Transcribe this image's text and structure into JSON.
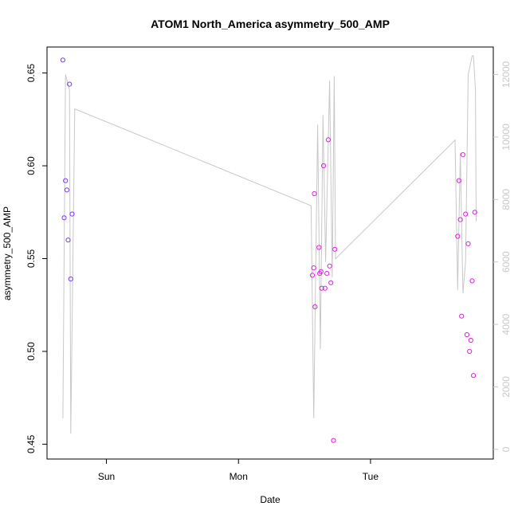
{
  "chart_data": {
    "type": "scatter",
    "title": "ATOM1 North_America asymmetry_500_AMP",
    "xlabel": "Date",
    "ylabel": "asymmetry_500_AMP",
    "x_ticks": [
      "Sun",
      "Mon",
      "Tue"
    ],
    "x_tick_positions": [
      1,
      2,
      3
    ],
    "xlim": [
      0.55,
      3.93
    ],
    "ylim": [
      0.442,
      0.664
    ],
    "y_ticks": [
      0.45,
      0.5,
      0.55,
      0.6,
      0.65
    ],
    "y_tick_labels": [
      "0.45",
      "0.50",
      "0.55",
      "0.60",
      "0.65"
    ],
    "y2lim": [
      -310,
      12880
    ],
    "y2_ticks": [
      0,
      2000,
      4000,
      6000,
      8000,
      10000,
      12000
    ],
    "y2_tick_labels": [
      "0",
      "2000",
      "4000",
      "6000",
      "8000",
      "10000",
      "12000"
    ],
    "grid": false,
    "series": [
      {
        "type": "scatter",
        "color": "#7a3cf0",
        "points": [
          [
            0.67,
            0.657
          ],
          [
            0.68,
            0.572
          ],
          [
            0.69,
            0.592
          ],
          [
            0.7,
            0.587
          ],
          [
            0.71,
            0.56
          ],
          [
            0.72,
            0.644
          ],
          [
            0.73,
            0.539
          ],
          [
            0.74,
            0.574
          ]
        ]
      },
      {
        "type": "scatter",
        "color": "#e020e0",
        "points": [
          [
            2.56,
            0.541
          ],
          [
            2.57,
            0.545
          ],
          [
            2.575,
            0.585
          ],
          [
            2.58,
            0.524
          ],
          [
            2.61,
            0.556
          ],
          [
            2.615,
            0.542
          ],
          [
            2.625,
            0.543
          ],
          [
            2.63,
            0.534
          ],
          [
            2.645,
            0.6
          ],
          [
            2.655,
            0.534
          ],
          [
            2.67,
            0.542
          ],
          [
            2.68,
            0.614
          ],
          [
            2.69,
            0.546
          ],
          [
            2.7,
            0.537
          ],
          [
            2.72,
            0.452
          ],
          [
            2.73,
            0.555
          ],
          [
            3.66,
            0.562
          ],
          [
            3.67,
            0.592
          ],
          [
            3.68,
            0.571
          ],
          [
            3.69,
            0.519
          ],
          [
            3.7,
            0.606
          ],
          [
            3.72,
            0.574
          ],
          [
            3.73,
            0.509
          ],
          [
            3.74,
            0.558
          ],
          [
            3.75,
            0.5
          ],
          [
            3.76,
            0.506
          ],
          [
            3.77,
            0.538
          ],
          [
            3.78,
            0.487
          ],
          [
            3.79,
            0.575
          ]
        ]
      },
      {
        "type": "line",
        "axis": "right",
        "color": "#c8c8c8",
        "points": [
          [
            0.67,
            1000
          ],
          [
            0.69,
            12000
          ],
          [
            0.72,
            11500
          ],
          [
            0.73,
            500
          ],
          [
            0.76,
            10900
          ],
          [
            2.55,
            7800
          ],
          [
            2.57,
            1000
          ],
          [
            2.6,
            10400
          ],
          [
            2.62,
            3200
          ],
          [
            2.64,
            10700
          ],
          [
            2.66,
            6000
          ],
          [
            2.69,
            11800
          ],
          [
            2.71,
            5500
          ],
          [
            2.725,
            11950
          ],
          [
            2.735,
            6100
          ],
          [
            3.64,
            9900
          ],
          [
            3.66,
            5100
          ],
          [
            3.68,
            9500
          ],
          [
            3.7,
            5000
          ],
          [
            3.72,
            6000
          ],
          [
            3.74,
            12000
          ],
          [
            3.77,
            12600
          ],
          [
            3.78,
            12600
          ],
          [
            3.795,
            11500
          ],
          [
            3.8,
            7300
          ]
        ]
      }
    ]
  }
}
